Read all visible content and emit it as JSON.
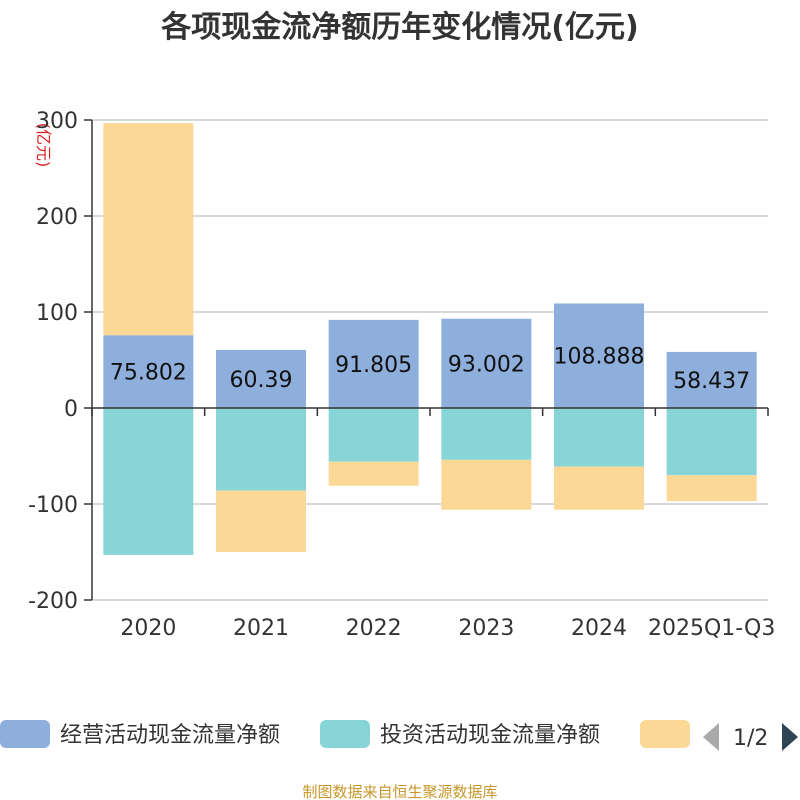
{
  "chart_data": {
    "type": "bar",
    "stacked": true,
    "title": "各项现金流净额历年变化情况(亿元)",
    "ylabel": "(亿元)",
    "xlabel": "",
    "ylim": [
      -200,
      300
    ],
    "yticks": [
      -200,
      -100,
      0,
      100,
      200,
      300
    ],
    "grid": true,
    "categories": [
      "2020",
      "2021",
      "2022",
      "2023",
      "2024",
      "2025Q1-Q3"
    ],
    "series": [
      {
        "name": "经营活动现金流量净额",
        "color": "#8eaedb",
        "values": [
          75.802,
          60.39,
          91.805,
          93.002,
          108.888,
          58.437
        ],
        "show_labels": true
      },
      {
        "name": "投资活动现金流量净额",
        "color": "#88d5d8",
        "values": [
          -153,
          -86,
          -56,
          -54,
          -61,
          -70
        ],
        "show_labels": false
      },
      {
        "name": "",
        "color": "#fcd897",
        "values": [
          221,
          -64,
          -25,
          -52,
          -45,
          -27
        ],
        "show_labels": false
      }
    ],
    "data_labels": [
      "75.802",
      "60.39",
      "91.805",
      "93.002",
      "108.888",
      "58.437"
    ],
    "legend": {
      "position": "bottom",
      "page": "1/2"
    }
  },
  "source_note": "制图数据来自恒生聚源数据库"
}
